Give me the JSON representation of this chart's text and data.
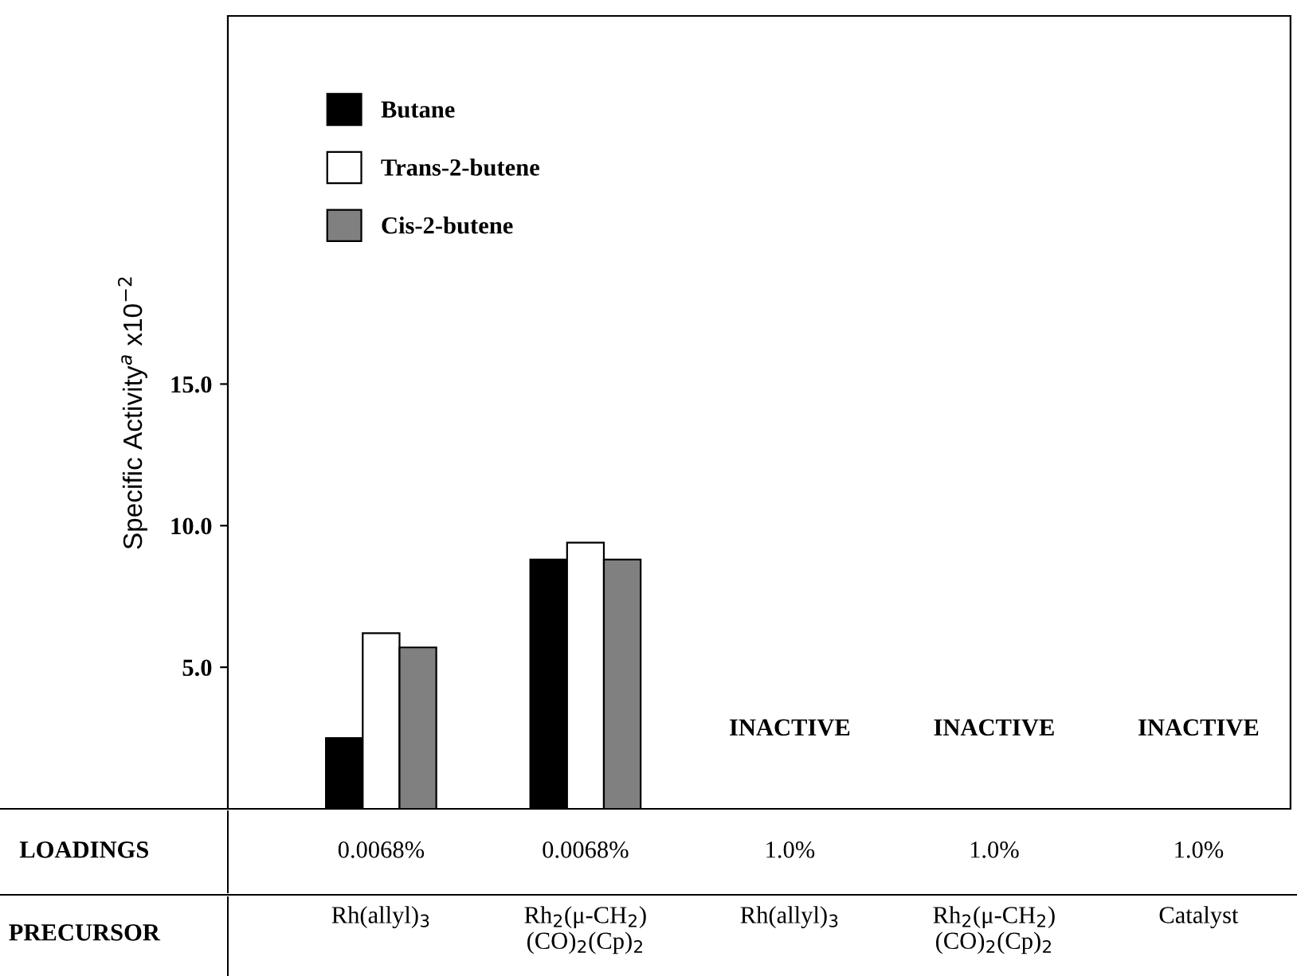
{
  "chart_data": {
    "type": "bar",
    "ylabel": "Specific Activity$^{a}$ x10$^{−2}$",
    "categories": [
      "Rh(allyl)$_{3}$",
      "Rh$_{2}$(μ-CH$_{2}$)\n(CO)$_{2}$(Cp)$_{2}$",
      "Rh(allyl)$_{3}$",
      "Rh$_{2}$(μ-CH$_{2}$)\n(CO)$_{2}$(Cp)$_{2}$",
      "Catalyst"
    ],
    "series": [
      {
        "name": "Butane",
        "color": "#000000",
        "values": [
          2.5,
          8.8,
          null,
          null,
          null
        ]
      },
      {
        "name": "Trans-2-butene",
        "color": "#ffffff",
        "values": [
          6.2,
          9.4,
          null,
          null,
          null
        ]
      },
      {
        "name": "Cis-2-butene",
        "color": "#808080",
        "values": [
          5.7,
          8.8,
          null,
          null,
          null
        ]
      }
    ],
    "annotations": [
      "INACTIVE",
      "INACTIVE",
      "INACTIVE",
      "LOADINGS",
      "0.0068%",
      "0.0068%",
      "1.0%",
      "1.0%",
      "1.0%",
      "PRECURSOR"
    ],
    "ylim": [
      0,
      28
    ],
    "yticks": [
      {
        "value": 5,
        "label": "5.0"
      },
      {
        "value": 10,
        "label": "10.0"
      },
      {
        "value": 15,
        "label": "15.0"
      }
    ],
    "legend": "top left",
    "grid": false
  }
}
